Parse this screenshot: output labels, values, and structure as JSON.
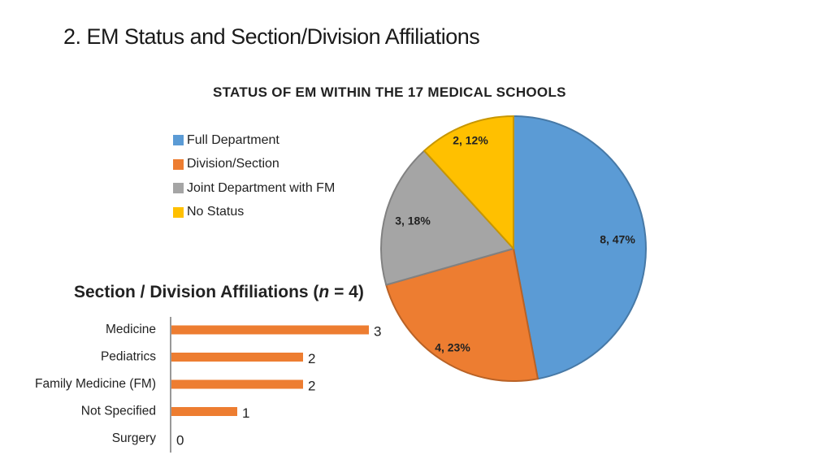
{
  "slide": {
    "title": "2. EM Status and Section/Division Affiliations"
  },
  "chart_data": [
    {
      "type": "pie",
      "title": "STATUS OF EM WITHIN THE 17 MEDICAL SCHOOLS",
      "legend_position": "left",
      "slices": [
        {
          "label": "Full Department",
          "value": 8,
          "percent": 47,
          "data_label": "8, 47%",
          "color": "#5B9BD5"
        },
        {
          "label": "Division/Section",
          "value": 4,
          "percent": 23,
          "data_label": "4, 23%",
          "color": "#ED7D31"
        },
        {
          "label": "Joint Department with FM",
          "value": 3,
          "percent": 18,
          "data_label": "3, 18%",
          "color": "#A5A5A5"
        },
        {
          "label": "No Status",
          "value": 2,
          "percent": 12,
          "data_label": "2, 12%",
          "color": "#FFC000"
        }
      ]
    },
    {
      "type": "bar",
      "orientation": "horizontal",
      "title": {
        "prefix": "Section / Division Affiliations (",
        "n_symbol": "n",
        "suffix": " = 4)"
      },
      "categories": [
        "Medicine",
        "Pediatrics",
        "Family Medicine (FM)",
        "Not Specified",
        "Surgery"
      ],
      "values": [
        3,
        2,
        2,
        1,
        0
      ],
      "xlim": [
        0,
        3
      ],
      "color": "#ED7D31",
      "grid": false
    }
  ]
}
